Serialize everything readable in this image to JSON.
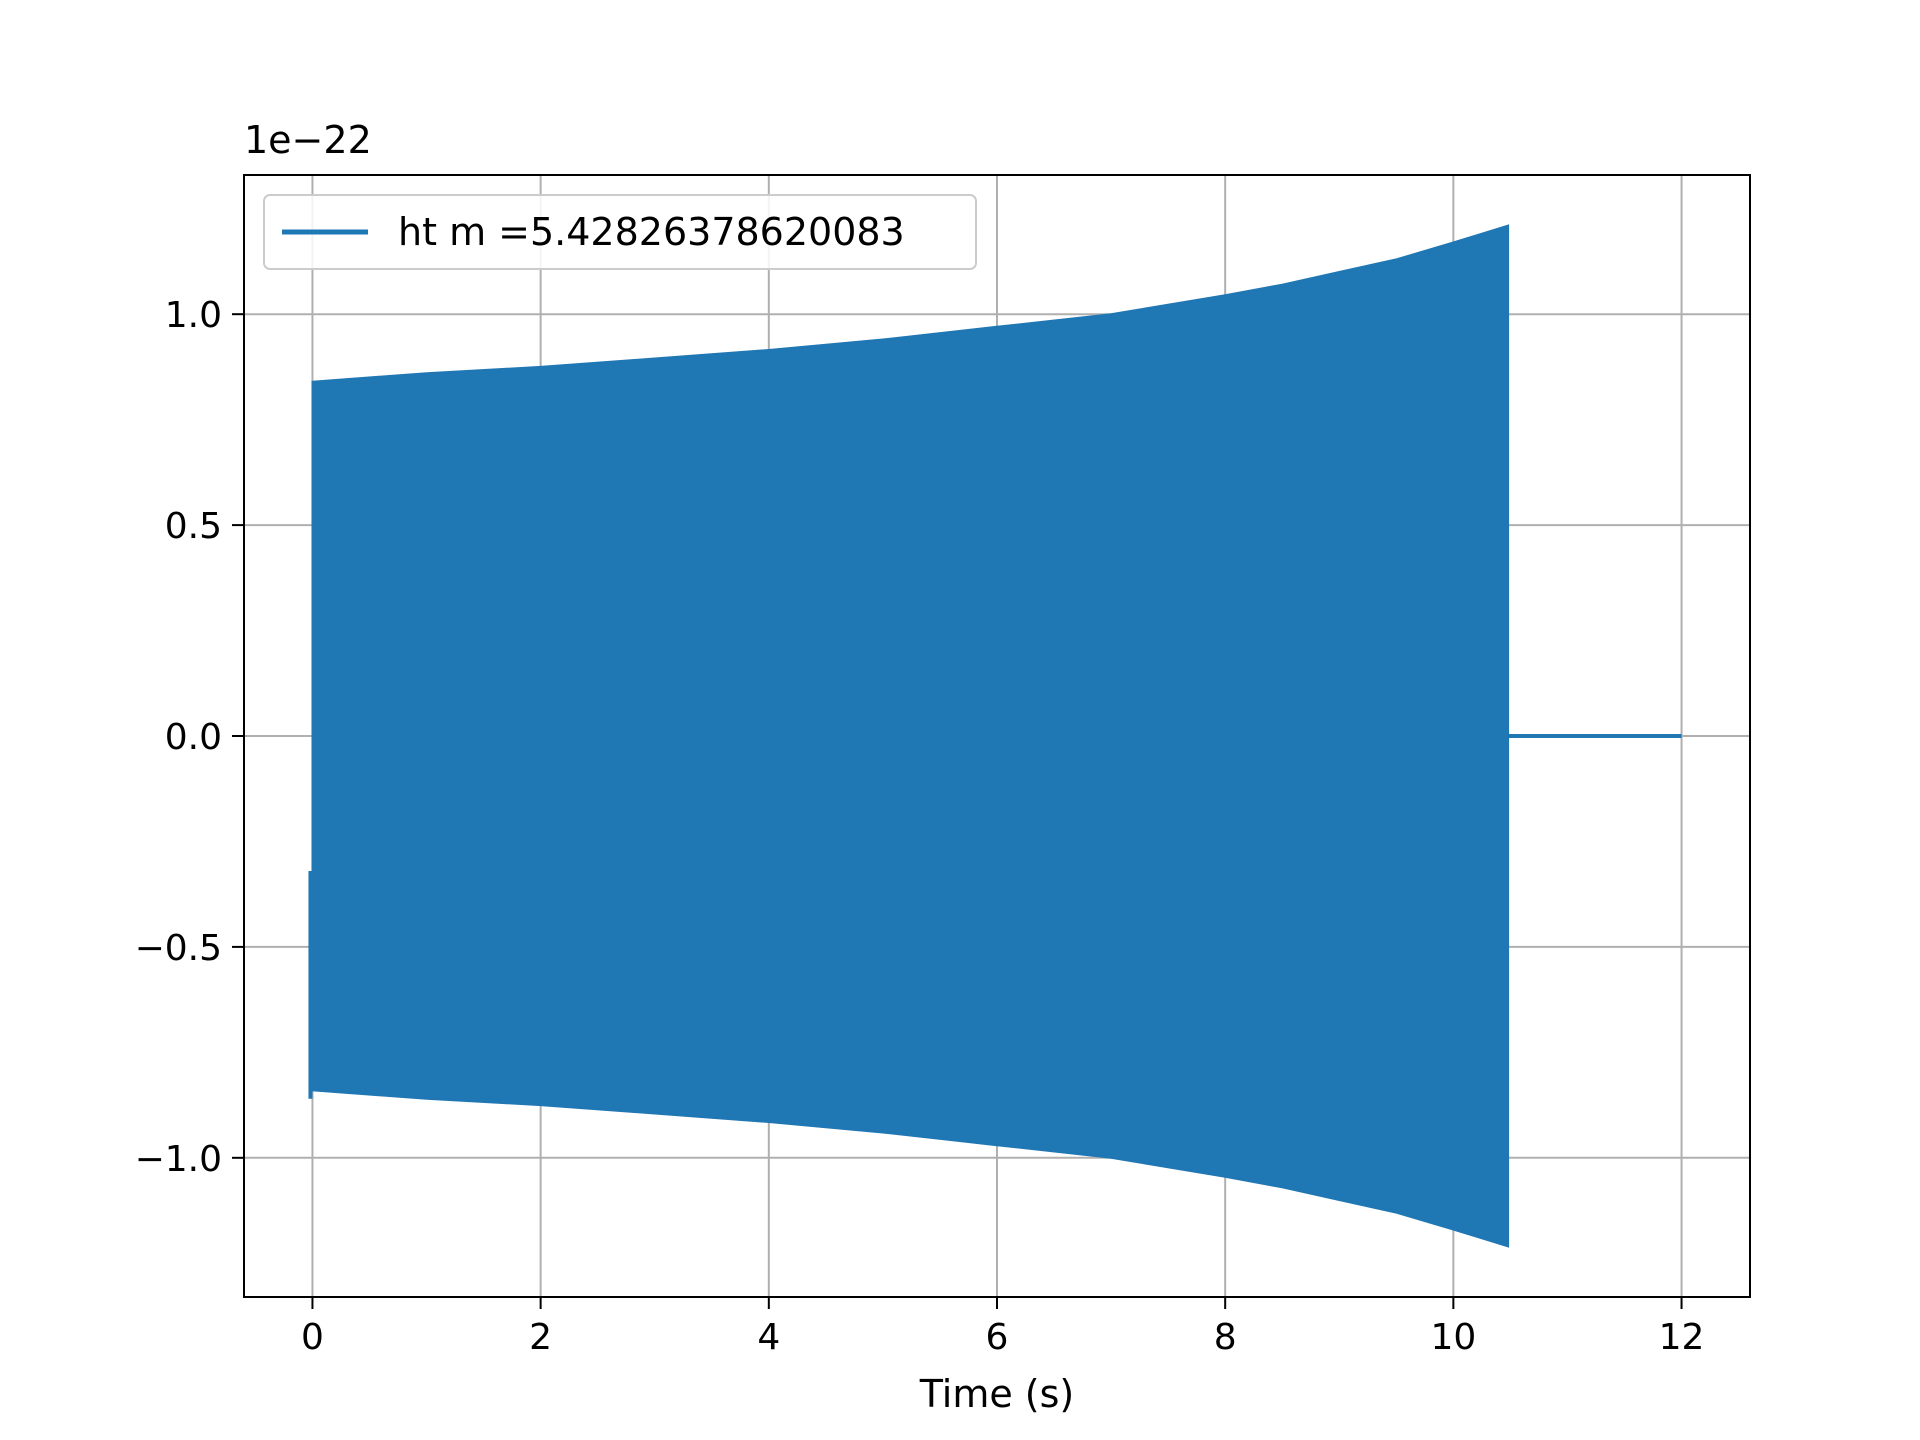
{
  "chart_data": {
    "type": "line",
    "title": "",
    "xlabel": "Time (s)",
    "ylabel": "",
    "y_offset_text": "1e−22",
    "xlim": [
      -0.6,
      12.6
    ],
    "ylim": [
      -1.33,
      1.33
    ],
    "x_ticks": [
      0,
      2,
      4,
      6,
      8,
      10,
      12
    ],
    "x_tick_labels": [
      "0",
      "2",
      "4",
      "6",
      "8",
      "10",
      "12"
    ],
    "y_ticks": [
      1.0,
      0.5,
      0.0,
      -0.5,
      -1.0
    ],
    "y_tick_labels": [
      "1.0",
      "0.5",
      "0.0",
      "−0.5",
      "−1.0"
    ],
    "grid": true,
    "legend_position": "top-left",
    "color": "#1f77b4",
    "series": [
      {
        "name": "ht m =5.42826378620083",
        "style": "densely oscillating chirp, rendered as filled envelope",
        "envelope_time": [
          0,
          1,
          2,
          3,
          4,
          5,
          6,
          7,
          8,
          8.5,
          9,
          9.5,
          10,
          10.3,
          10.48
        ],
        "envelope_amplitude": [
          0.84,
          0.86,
          0.875,
          0.895,
          0.915,
          0.94,
          0.97,
          1.0,
          1.045,
          1.07,
          1.1,
          1.13,
          1.17,
          1.195,
          1.21
        ],
        "start_value": -0.32,
        "zero_segment": [
          10.48,
          12.0
        ]
      }
    ]
  }
}
